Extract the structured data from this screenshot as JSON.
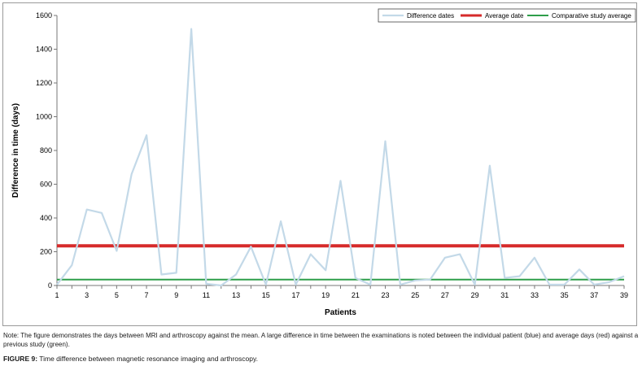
{
  "chart_data": {
    "type": "line",
    "xlabel": "Patients",
    "ylabel": "Difference in time (days)",
    "x": [
      1,
      2,
      3,
      4,
      5,
      6,
      7,
      8,
      9,
      10,
      11,
      12,
      13,
      14,
      15,
      16,
      17,
      18,
      19,
      20,
      21,
      22,
      23,
      24,
      25,
      26,
      27,
      28,
      29,
      30,
      31,
      32,
      33,
      34,
      35,
      36,
      37,
      38,
      39
    ],
    "xticks": [
      "1",
      "3",
      "5",
      "7",
      "9",
      "11",
      "13",
      "15",
      "17",
      "19",
      "21",
      "23",
      "25",
      "27",
      "29",
      "31",
      "33",
      "35",
      "37",
      "39"
    ],
    "yticks": [
      "0",
      "200",
      "400",
      "600",
      "800",
      "1000",
      "1200",
      "1400",
      "1600"
    ],
    "ylim": [
      0,
      1600
    ],
    "xlim": [
      1,
      39
    ],
    "grid": false,
    "legend_position": "top-right",
    "series": [
      {
        "name": "Difference dates",
        "color": "#c3d9e8",
        "values": [
          5,
          120,
          450,
          430,
          205,
          660,
          890,
          65,
          75,
          1520,
          10,
          0,
          65,
          230,
          5,
          380,
          5,
          185,
          90,
          620,
          45,
          5,
          855,
          5,
          30,
          35,
          165,
          185,
          5,
          710,
          45,
          55,
          165,
          5,
          5,
          95,
          5,
          20,
          55
        ]
      },
      {
        "name": "Average date",
        "color": "#d62a2a",
        "constant": 235
      },
      {
        "name": "Comparative study average",
        "color": "#2e9e4a",
        "constant": 35
      }
    ]
  },
  "caption": {
    "note": "Note: The figure demonstrates the days between MRI and arthroscopy against the mean. A large difference in time between the examinations is noted between the individual patient (blue) and average days (red) against a previous study (green).",
    "figure_label": "FIGURE 9:",
    "figure_text": "Time difference between magnetic resonance imaging and arthroscopy."
  }
}
